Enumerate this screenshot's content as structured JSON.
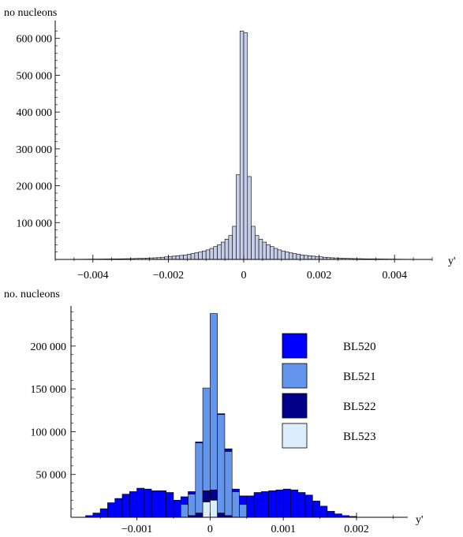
{
  "chart_data": [
    {
      "type": "bar",
      "ylabel": "no nucleons",
      "xlabel": "y'",
      "xlim": [
        -0.005,
        0.005
      ],
      "ylim": [
        0,
        640000
      ],
      "xticks": [
        -0.004,
        -0.002,
        0,
        0.002,
        0.004
      ],
      "xtick_labels": [
        "−0.004",
        "−0.002",
        "0",
        "0.002",
        "0.004"
      ],
      "yticks": [
        100000,
        200000,
        300000,
        400000,
        500000,
        600000
      ],
      "ytick_labels": [
        "100 000",
        "200 000",
        "300 000",
        "400 000",
        "500 000",
        "600 000"
      ],
      "bin_width": 0.0001,
      "bins": [
        [
          -0.005,
          200
        ],
        [
          -0.0049,
          300
        ],
        [
          -0.0048,
          300
        ],
        [
          -0.0047,
          400
        ],
        [
          -0.0046,
          400
        ],
        [
          -0.0045,
          500
        ],
        [
          -0.0044,
          500
        ],
        [
          -0.0043,
          600
        ],
        [
          -0.0042,
          700
        ],
        [
          -0.0041,
          800
        ],
        [
          -0.004,
          900
        ],
        [
          -0.0039,
          1000
        ],
        [
          -0.0038,
          1100
        ],
        [
          -0.0037,
          1200
        ],
        [
          -0.0036,
          1300
        ],
        [
          -0.0035,
          1400
        ],
        [
          -0.0034,
          1500
        ],
        [
          -0.0033,
          1600
        ],
        [
          -0.0032,
          1800
        ],
        [
          -0.0031,
          2000
        ],
        [
          -0.003,
          2200
        ],
        [
          -0.0029,
          2500
        ],
        [
          -0.0028,
          2800
        ],
        [
          -0.0027,
          3000
        ],
        [
          -0.0026,
          3500
        ],
        [
          -0.0025,
          4000
        ],
        [
          -0.0024,
          4500
        ],
        [
          -0.0023,
          5000
        ],
        [
          -0.0022,
          6000
        ],
        [
          -0.0021,
          7000
        ],
        [
          -0.002,
          8000
        ],
        [
          -0.0019,
          9000
        ],
        [
          -0.0018,
          10000
        ],
        [
          -0.0017,
          11000
        ],
        [
          -0.0016,
          12000
        ],
        [
          -0.0015,
          14000
        ],
        [
          -0.0014,
          16000
        ],
        [
          -0.0013,
          18000
        ],
        [
          -0.0012,
          20000
        ],
        [
          -0.0011,
          23000
        ],
        [
          -0.001,
          26000
        ],
        [
          -0.0009,
          30000
        ],
        [
          -0.0008,
          35000
        ],
        [
          -0.0007,
          40000
        ],
        [
          -0.0006,
          47000
        ],
        [
          -0.0005,
          55000
        ],
        [
          -0.0004,
          65000
        ],
        [
          -0.0003,
          90000
        ],
        [
          -0.0002,
          230000
        ],
        [
          -0.0001,
          620000
        ],
        [
          0.0,
          615000
        ],
        [
          0.0001,
          225000
        ],
        [
          0.0002,
          90000
        ],
        [
          0.0003,
          65000
        ],
        [
          0.0004,
          55000
        ],
        [
          0.0005,
          47000
        ],
        [
          0.0006,
          40000
        ],
        [
          0.0007,
          35000
        ],
        [
          0.0008,
          30000
        ],
        [
          0.0009,
          26000
        ],
        [
          0.001,
          23000
        ],
        [
          0.0011,
          20000
        ],
        [
          0.0012,
          18000
        ],
        [
          0.0013,
          16000
        ],
        [
          0.0014,
          14000
        ],
        [
          0.0015,
          12000
        ],
        [
          0.0016,
          11000
        ],
        [
          0.0017,
          10000
        ],
        [
          0.0018,
          9000
        ],
        [
          0.0019,
          8000
        ],
        [
          0.002,
          7000
        ],
        [
          0.0021,
          6000
        ],
        [
          0.0022,
          5000
        ],
        [
          0.0023,
          4500
        ],
        [
          0.0024,
          4000
        ],
        [
          0.0025,
          3500
        ],
        [
          0.0026,
          3000
        ],
        [
          0.0027,
          2800
        ],
        [
          0.0028,
          2500
        ],
        [
          0.0029,
          2200
        ],
        [
          0.003,
          2000
        ],
        [
          0.0031,
          1800
        ],
        [
          0.0032,
          1600
        ],
        [
          0.0033,
          1500
        ],
        [
          0.0034,
          1400
        ],
        [
          0.0035,
          1300
        ],
        [
          0.0036,
          1200
        ],
        [
          0.0037,
          1100
        ],
        [
          0.0038,
          1000
        ],
        [
          0.0039,
          900
        ],
        [
          0.004,
          800
        ],
        [
          0.0041,
          700
        ],
        [
          0.0042,
          600
        ],
        [
          0.0043,
          500
        ],
        [
          0.0044,
          500
        ],
        [
          0.0045,
          400
        ],
        [
          0.0046,
          400
        ],
        [
          0.0047,
          300
        ],
        [
          0.0048,
          300
        ],
        [
          0.0049,
          200
        ]
      ],
      "bar_color": "#c5cde8",
      "edge_color": "#000000"
    },
    {
      "type": "bar",
      "stacked": true,
      "ylabel": "no. nucleons",
      "xlabel": "y'",
      "xlim": [
        -0.0019,
        0.0027
      ],
      "ylim": [
        0,
        245000
      ],
      "xticks": [
        -0.001,
        0,
        0.001,
        0.002
      ],
      "xtick_labels": [
        "−0.001",
        "0",
        "0.001",
        "0.002"
      ],
      "yticks": [
        50000,
        100000,
        150000,
        200000
      ],
      "ytick_labels": [
        "50 000",
        "100 000",
        "150 000",
        "200 000"
      ],
      "bin_width": 0.0001,
      "legend_position": "top-right",
      "x": [
        -0.0017,
        -0.0016,
        -0.0015,
        -0.0014,
        -0.0013,
        -0.0012,
        -0.0011,
        -0.001,
        -0.0009,
        -0.0008,
        -0.0007,
        -0.0006,
        -0.0005,
        -0.0004,
        -0.0003,
        -0.0002,
        -0.0001,
        0.0,
        0.0001,
        0.0002,
        0.0003,
        0.0004,
        0.0005,
        0.0006,
        0.0007,
        0.0008,
        0.0009,
        0.001,
        0.0011,
        0.0012,
        0.0013,
        0.0014,
        0.0015,
        0.0016,
        0.0017,
        0.0018,
        0.0019
      ],
      "series": [
        {
          "name": "BL523",
          "color": "#dceefc",
          "values": [
            0,
            0,
            0,
            0,
            0,
            0,
            0,
            0,
            0,
            0,
            0,
            0,
            0,
            0,
            0,
            0,
            18000,
            20000,
            0,
            0,
            0,
            0,
            0,
            0,
            0,
            0,
            0,
            0,
            0,
            0,
            0,
            0,
            0,
            0,
            0,
            0,
            0
          ]
        },
        {
          "name": "BL522",
          "color": "#00008b",
          "values": [
            0,
            0,
            0,
            0,
            0,
            0,
            0,
            0,
            0,
            0,
            0,
            0,
            0,
            0,
            2000,
            5000,
            13000,
            12000,
            5000,
            2000,
            0,
            0,
            0,
            0,
            0,
            0,
            0,
            0,
            0,
            0,
            0,
            0,
            0,
            0,
            0,
            0,
            0
          ]
        },
        {
          "name": "BL521",
          "color": "#6495ed",
          "values": [
            0,
            0,
            0,
            0,
            0,
            0,
            0,
            0,
            0,
            0,
            0,
            0,
            0,
            15000,
            25000,
            82000,
            120000,
            206000,
            115000,
            75000,
            30000,
            15000,
            0,
            0,
            0,
            0,
            0,
            0,
            0,
            0,
            0,
            0,
            0,
            0,
            0,
            0,
            0
          ]
        },
        {
          "name": "BL520",
          "color": "#0000ff",
          "values": [
            2000,
            5000,
            10000,
            17000,
            22000,
            27000,
            30000,
            34000,
            33000,
            31000,
            31000,
            29000,
            20000,
            9000,
            3000,
            1000,
            0,
            0,
            1000,
            3000,
            3000,
            10000,
            25000,
            29000,
            30000,
            31000,
            32000,
            33000,
            32000,
            29000,
            26000,
            19000,
            13000,
            7000,
            4000,
            2000,
            1000
          ]
        }
      ],
      "legend_order": [
        "BL520",
        "BL521",
        "BL522",
        "BL523"
      ]
    }
  ]
}
